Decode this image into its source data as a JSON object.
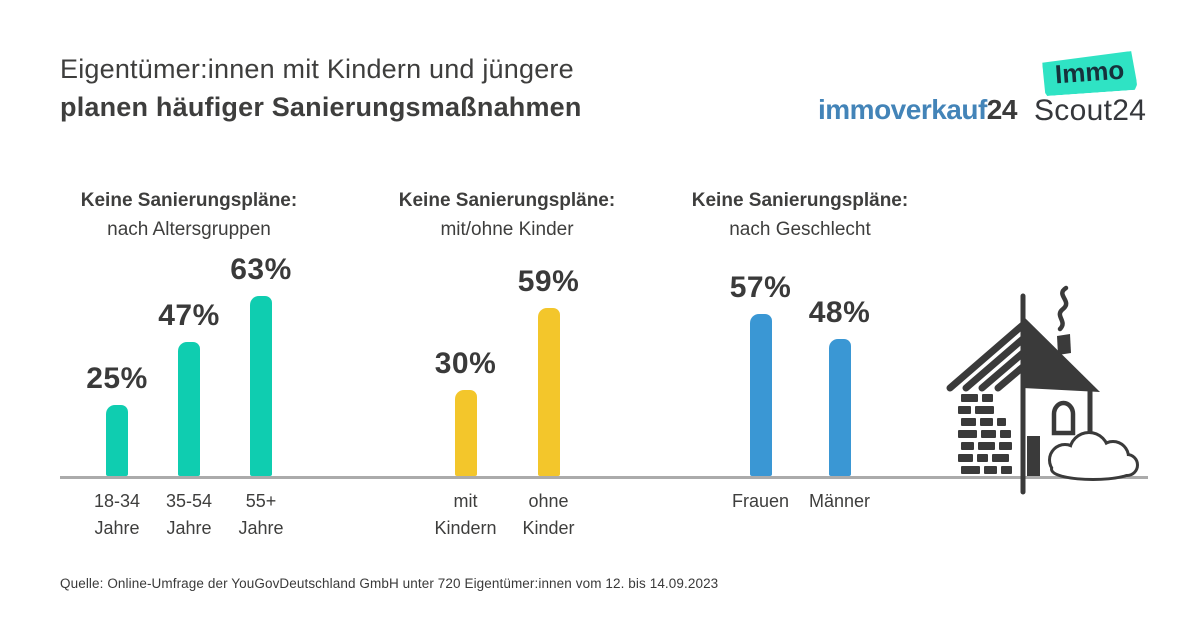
{
  "header": {
    "title_line1": "Eigentümer:innen mit Kindern und jüngere",
    "title_line2": "planen häufiger Sanierungsmaßnahmen",
    "logos": {
      "immoverkauf": {
        "main": "immoverkauf",
        "suffix": "24",
        "main_color": "#4384B8"
      },
      "immoscout": {
        "badge": "Immo",
        "text": "Scout24",
        "badge_color": "#2FE3C4"
      }
    }
  },
  "chart_data": {
    "type": "bar",
    "unit": "%",
    "value_range": [
      0,
      70
    ],
    "baseline_color": "#ABABAB",
    "legend": "none",
    "groups": [
      {
        "title": "Keine Sanierungspläne:",
        "subtitle": "nach Altersgruppen",
        "color": "#0FCDB0",
        "bars": [
          {
            "label_lines": [
              "18-34",
              "Jahre"
            ],
            "value": 25
          },
          {
            "label_lines": [
              "35-54",
              "Jahre"
            ],
            "value": 47
          },
          {
            "label_lines": [
              "55+",
              "Jahre"
            ],
            "value": 63
          }
        ]
      },
      {
        "title": "Keine Sanierungspläne:",
        "subtitle": "mit/ohne Kinder",
        "color": "#F3C62B",
        "bars": [
          {
            "label_lines": [
              "mit",
              "Kindern"
            ],
            "value": 30
          },
          {
            "label_lines": [
              "ohne",
              "Kinder"
            ],
            "value": 59
          }
        ]
      },
      {
        "title": "Keine Sanierungspläne:",
        "subtitle": "nach Geschlecht",
        "color": "#3A97D4",
        "bars": [
          {
            "label_lines": [
              "Frauen"
            ],
            "value": 57
          },
          {
            "label_lines": [
              "Männer"
            ],
            "value": 48
          }
        ]
      }
    ]
  },
  "footer": {
    "source": "Quelle: Online-Umfrage der YouGovDeutschland GmbH unter 720 Eigentümer:innen vom 12. bis 14.09.2023"
  }
}
